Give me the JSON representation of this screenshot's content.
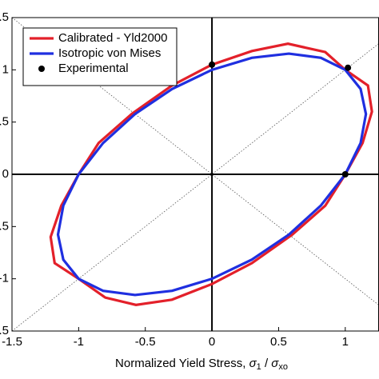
{
  "chart_data": {
    "type": "line",
    "xlabel": {
      "text": "Normalized Yield Stress, ",
      "symbol1": "σ",
      "sub1": "1",
      "sep": " / ",
      "symbol2": "σ",
      "sub2": "xo"
    },
    "xlim": [
      -1.5,
      1.25
    ],
    "ylim": [
      -1.5,
      1.5
    ],
    "xticks": [
      -1.5,
      -1,
      -0.5,
      0,
      0.5,
      1
    ],
    "yticks": [
      -1.5,
      -1,
      -0.5,
      0,
      0.5,
      1,
      1.5
    ],
    "legend": "upper left",
    "series": [
      {
        "name": "Calibrated - Yld2000",
        "color": "#e3202a",
        "x": [
          1,
          0.85,
          0.57,
          0.3,
          0,
          -0.3,
          -0.6,
          -0.85,
          -1,
          -1.13,
          -1.21,
          -1.18,
          -1,
          -0.8,
          -0.57,
          -0.3,
          0,
          0.3,
          0.6,
          0.85,
          1,
          1.13,
          1.2,
          1.17
        ],
        "values": [
          1,
          1.17,
          1.25,
          1.18,
          1.05,
          0.85,
          0.58,
          0.3,
          0,
          -0.3,
          -0.6,
          -0.85,
          -1,
          -1.18,
          -1.25,
          -1.2,
          -1.05,
          -0.85,
          -0.58,
          -0.3,
          0,
          0.3,
          0.6,
          0.85
        ]
      },
      {
        "name": "Isotropic von Mises",
        "color": "#1f2fe0",
        "x": [
          1,
          0.817,
          0.577,
          0.299,
          0,
          -0.299,
          -0.577,
          -0.817,
          -1,
          -1.115,
          -1.155,
          -1.115,
          -1,
          -0.817,
          -0.577,
          -0.299,
          0,
          0.299,
          0.577,
          0.817,
          1,
          1.115,
          1.155,
          1.115
        ],
        "values": [
          1,
          1.115,
          1.155,
          1.115,
          1,
          0.817,
          0.577,
          0.299,
          0,
          -0.299,
          -0.577,
          -0.817,
          -1,
          -1.115,
          -1.155,
          -1.115,
          -1,
          -0.817,
          -0.577,
          -0.299,
          0,
          0.299,
          0.577,
          0.817
        ]
      }
    ],
    "scatter": {
      "name": "Experimental",
      "color": "#000000",
      "x": [
        0,
        1.02,
        1
      ],
      "values": [
        1.05,
        1.02,
        0
      ]
    }
  }
}
